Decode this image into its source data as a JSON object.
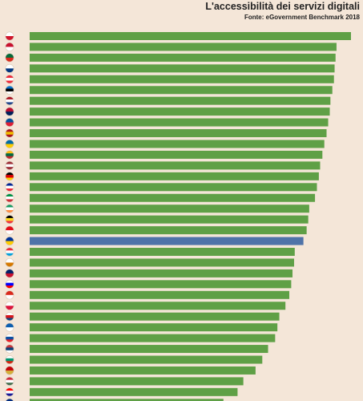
{
  "chart_data": {
    "type": "bar",
    "orientation": "horizontal",
    "title": "L'accessibilità dei servizi digitali",
    "subtitle": "Fonte: eGovernment Benchmark 2018",
    "xlabel": "",
    "ylabel": "",
    "grid": false,
    "legend": "none",
    "xlim": [
      0,
      100
    ],
    "categories": [
      "Malta",
      "Denmark",
      "Portugal",
      "Finland",
      "Austria",
      "Estonia",
      "Netherlands",
      "Norway",
      "Iceland",
      "Spain",
      "Sweden",
      "Lithuania",
      "Latvia",
      "Germany",
      "France",
      "Italy",
      "Ireland",
      "Belgium",
      "Turkey",
      "EU average",
      "Luxembourg",
      "Cyprus",
      "United Kingdom",
      "Slovenia",
      "Switzerland",
      "Poland",
      "Czech Republic",
      "Greece",
      "Slovakia",
      "Serbia",
      "Bulgaria",
      "Montenegro",
      "Hungary",
      "Croatia",
      "Romania"
    ],
    "values": [
      100,
      95.5,
      95.2,
      94.9,
      94.7,
      94.2,
      93.6,
      93.4,
      92.9,
      92.4,
      91.7,
      91.1,
      90.4,
      90.0,
      89.4,
      88.8,
      87.0,
      86.7,
      86.2,
      85.2,
      82.5,
      82.3,
      81.8,
      81.4,
      80.8,
      79.6,
      77.7,
      77.1,
      76.4,
      74.2,
      72.4,
      70.3,
      66.5,
      64.7,
      60.3
    ],
    "highlight_category": "EU average",
    "colors": {
      "bar": "#5fa046",
      "highlight": "#4f73a8",
      "background": "#f4e6d8"
    },
    "flags": [
      {
        "icon": "flag-malta-icon",
        "colors": [
          "#ffffff",
          "#cf142b"
        ]
      },
      {
        "icon": "flag-denmark-icon",
        "colors": [
          "#c8102e",
          "#ffffff"
        ]
      },
      {
        "icon": "flag-portugal-icon",
        "colors": [
          "#046a38",
          "#da291c"
        ]
      },
      {
        "icon": "flag-finland-icon",
        "colors": [
          "#ffffff",
          "#003580"
        ]
      },
      {
        "icon": "flag-austria-icon",
        "colors": [
          "#ed2939",
          "#ffffff",
          "#ed2939"
        ]
      },
      {
        "icon": "flag-estonia-icon",
        "colors": [
          "#0072ce",
          "#000000",
          "#ffffff"
        ]
      },
      {
        "icon": "flag-netherlands-icon",
        "colors": [
          "#ae1c28",
          "#ffffff",
          "#21468b"
        ]
      },
      {
        "icon": "flag-norway-icon",
        "colors": [
          "#ba0c2f",
          "#00205b"
        ]
      },
      {
        "icon": "flag-iceland-icon",
        "colors": [
          "#02529c",
          "#dc1e35"
        ]
      },
      {
        "icon": "flag-spain-icon",
        "colors": [
          "#aa151b",
          "#f1bf00",
          "#aa151b"
        ]
      },
      {
        "icon": "flag-sweden-icon",
        "colors": [
          "#006aa7",
          "#fecc00"
        ]
      },
      {
        "icon": "flag-lithuania-icon",
        "colors": [
          "#fdb913",
          "#006a44",
          "#c1272d"
        ]
      },
      {
        "icon": "flag-latvia-icon",
        "colors": [
          "#9e3039",
          "#ffffff",
          "#9e3039"
        ]
      },
      {
        "icon": "flag-germany-icon",
        "colors": [
          "#000000",
          "#dd0000",
          "#ffce00"
        ]
      },
      {
        "icon": "flag-france-icon",
        "colors": [
          "#002395",
          "#ffffff",
          "#ed2939"
        ]
      },
      {
        "icon": "flag-italy-icon",
        "colors": [
          "#009246",
          "#ffffff",
          "#ce2b37"
        ]
      },
      {
        "icon": "flag-ireland-icon",
        "colors": [
          "#169b62",
          "#ffffff",
          "#ff883e"
        ]
      },
      {
        "icon": "flag-belgium-icon",
        "colors": [
          "#000000",
          "#fdda24",
          "#ef3340"
        ]
      },
      {
        "icon": "flag-turkey-icon",
        "colors": [
          "#e30a17",
          "#ffffff"
        ]
      },
      {
        "icon": "flag-eu-icon",
        "colors": [
          "#003399",
          "#ffcc00"
        ]
      },
      {
        "icon": "flag-luxembourg-icon",
        "colors": [
          "#ed2939",
          "#ffffff",
          "#00a1de"
        ]
      },
      {
        "icon": "flag-cyprus-icon",
        "colors": [
          "#ffffff",
          "#d57800"
        ]
      },
      {
        "icon": "flag-united-kingdom-icon",
        "colors": [
          "#012169",
          "#c8102e"
        ]
      },
      {
        "icon": "flag-slovenia-icon",
        "colors": [
          "#ffffff",
          "#0000ff",
          "#ff0000"
        ]
      },
      {
        "icon": "flag-switzerland-icon",
        "colors": [
          "#da291c",
          "#ffffff"
        ]
      },
      {
        "icon": "flag-poland-icon",
        "colors": [
          "#ffffff",
          "#dc143c"
        ]
      },
      {
        "icon": "flag-czech-icon",
        "colors": [
          "#ffffff",
          "#d7141a",
          "#11457e"
        ]
      },
      {
        "icon": "flag-greece-icon",
        "colors": [
          "#0d5eaf",
          "#ffffff"
        ]
      },
      {
        "icon": "flag-slovakia-icon",
        "colors": [
          "#ffffff",
          "#0b4ea2",
          "#ee1c25"
        ]
      },
      {
        "icon": "flag-serbia-icon",
        "colors": [
          "#c6363c",
          "#0c4076",
          "#ffffff"
        ]
      },
      {
        "icon": "flag-bulgaria-icon",
        "colors": [
          "#ffffff",
          "#00966e",
          "#d62612"
        ]
      },
      {
        "icon": "flag-montenegro-icon",
        "colors": [
          "#c40308",
          "#d4af3a"
        ]
      },
      {
        "icon": "flag-hungary-icon",
        "colors": [
          "#ce2939",
          "#ffffff",
          "#477050"
        ]
      },
      {
        "icon": "flag-croatia-icon",
        "colors": [
          "#ff0000",
          "#ffffff",
          "#171796"
        ]
      },
      {
        "icon": "flag-romania-icon",
        "colors": [
          "#002b7f",
          "#fcd116",
          "#ce1126"
        ]
      }
    ]
  }
}
